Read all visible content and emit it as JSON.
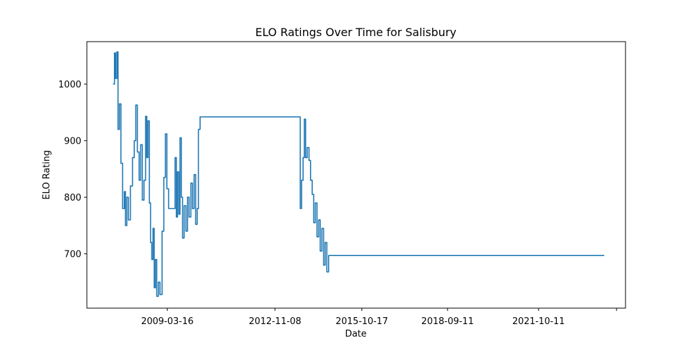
{
  "chart_data": {
    "type": "line",
    "title": "ELO Ratings Over Time for Salisbury",
    "xlabel": "Date",
    "ylabel": "ELO Rating",
    "grid": false,
    "legend": "none",
    "x_axis": {
      "type": "date",
      "range": [
        "2006-06-25",
        "2024-09-20"
      ],
      "ticks": [
        {
          "date": "2009-03-16",
          "label": "2009-03-16"
        },
        {
          "date": "2012-11-08",
          "label": "2012-11-08"
        },
        {
          "date": "2015-10-17",
          "label": "2015-10-17"
        },
        {
          "date": "2018-09-11",
          "label": "2018-09-11"
        },
        {
          "date": "2021-10-11",
          "label": "2021-10-11"
        },
        {
          "date": "2024-06-01",
          "label": ""
        }
      ]
    },
    "y_axis": {
      "range": [
        604,
        1075
      ],
      "ticks": [
        {
          "value": 700,
          "label": "700"
        },
        {
          "value": 800,
          "label": "800"
        },
        {
          "value": 900,
          "label": "900"
        },
        {
          "value": 1000,
          "label": "1000"
        }
      ]
    },
    "series": [
      {
        "color": "#1f77b4",
        "points": [
          [
            "2007-05-15",
            1000
          ],
          [
            "2007-06-01",
            1055
          ],
          [
            "2007-06-15",
            1010
          ],
          [
            "2007-07-01",
            1057
          ],
          [
            "2007-07-15",
            920
          ],
          [
            "2007-08-01",
            965
          ],
          [
            "2007-08-20",
            860
          ],
          [
            "2007-09-10",
            780
          ],
          [
            "2007-10-01",
            810
          ],
          [
            "2007-10-15",
            750
          ],
          [
            "2007-11-01",
            800
          ],
          [
            "2007-11-20",
            760
          ],
          [
            "2007-12-15",
            820
          ],
          [
            "2008-01-10",
            870
          ],
          [
            "2008-02-01",
            900
          ],
          [
            "2008-02-20",
            963
          ],
          [
            "2008-03-10",
            880
          ],
          [
            "2008-04-01",
            830
          ],
          [
            "2008-04-20",
            893
          ],
          [
            "2008-05-10",
            795
          ],
          [
            "2008-06-01",
            830
          ],
          [
            "2008-06-20",
            943
          ],
          [
            "2008-07-05",
            870
          ],
          [
            "2008-07-20",
            935
          ],
          [
            "2008-08-05",
            790
          ],
          [
            "2008-08-20",
            720
          ],
          [
            "2008-09-05",
            690
          ],
          [
            "2008-09-20",
            745
          ],
          [
            "2008-10-05",
            640
          ],
          [
            "2008-10-20",
            690
          ],
          [
            "2008-11-05",
            625
          ],
          [
            "2008-11-25",
            650
          ],
          [
            "2008-12-15",
            628
          ],
          [
            "2009-01-10",
            740
          ],
          [
            "2009-02-01",
            835
          ],
          [
            "2009-02-20",
            912
          ],
          [
            "2009-03-10",
            815
          ],
          [
            "2009-04-01",
            780
          ],
          [
            "2009-05-01",
            780
          ],
          [
            "2009-06-01",
            780
          ],
          [
            "2009-06-20",
            870
          ],
          [
            "2009-07-05",
            765
          ],
          [
            "2009-07-20",
            845
          ],
          [
            "2009-08-05",
            770
          ],
          [
            "2009-08-20",
            905
          ],
          [
            "2009-09-05",
            800
          ],
          [
            "2009-09-20",
            728
          ],
          [
            "2009-10-10",
            785
          ],
          [
            "2009-11-01",
            740
          ],
          [
            "2009-11-20",
            800
          ],
          [
            "2009-12-10",
            765
          ],
          [
            "2010-01-01",
            825
          ],
          [
            "2010-01-20",
            780
          ],
          [
            "2010-02-10",
            840
          ],
          [
            "2010-03-01",
            752
          ],
          [
            "2010-03-20",
            780
          ],
          [
            "2010-04-05",
            920
          ],
          [
            "2010-04-25",
            942
          ],
          [
            "2011-06-01",
            942
          ],
          [
            "2012-08-01",
            942
          ],
          [
            "2013-06-01",
            942
          ],
          [
            "2013-09-01",
            942
          ],
          [
            "2013-09-15",
            780
          ],
          [
            "2013-10-01",
            830
          ],
          [
            "2013-10-20",
            870
          ],
          [
            "2013-11-05",
            938
          ],
          [
            "2013-11-20",
            870
          ],
          [
            "2013-12-10",
            888
          ],
          [
            "2014-01-01",
            865
          ],
          [
            "2014-01-20",
            830
          ],
          [
            "2014-02-10",
            805
          ],
          [
            "2014-03-01",
            755
          ],
          [
            "2014-03-20",
            790
          ],
          [
            "2014-04-10",
            730
          ],
          [
            "2014-05-01",
            760
          ],
          [
            "2014-05-20",
            705
          ],
          [
            "2014-06-10",
            745
          ],
          [
            "2014-07-01",
            680
          ],
          [
            "2014-07-20",
            720
          ],
          [
            "2014-08-10",
            668
          ],
          [
            "2014-09-01",
            697
          ],
          [
            "2016-01-01",
            697
          ],
          [
            "2018-01-01",
            697
          ],
          [
            "2020-01-01",
            697
          ],
          [
            "2022-01-01",
            697
          ],
          [
            "2023-06-01",
            697
          ],
          [
            "2024-01-01",
            697
          ]
        ]
      }
    ]
  }
}
